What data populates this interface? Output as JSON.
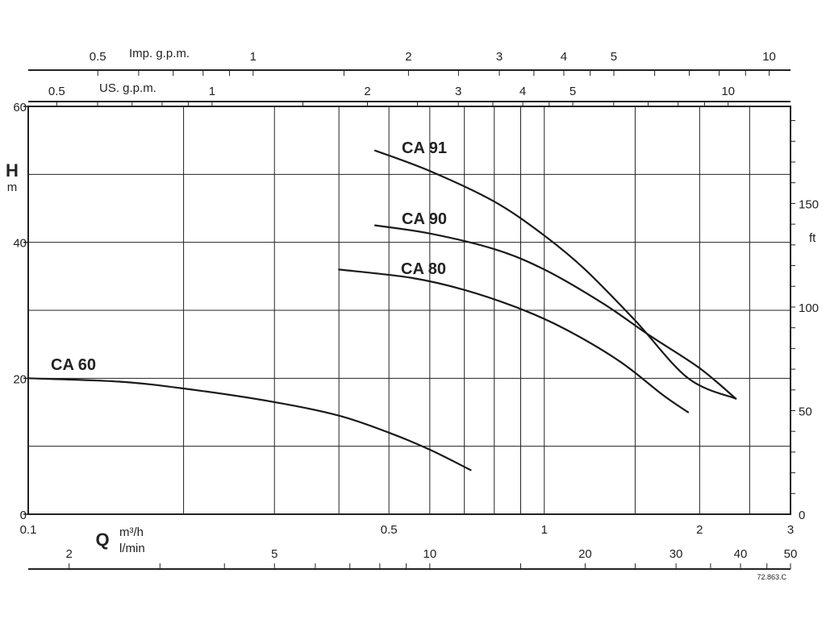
{
  "chart_data": {
    "type": "line",
    "title": "",
    "x_scale": "log",
    "y_scale": "linear",
    "xlim": [
      0.1,
      3
    ],
    "ylim": [
      0,
      60
    ],
    "grid": true,
    "x_axis": {
      "quantity": "Q",
      "unit_primary": "m³/h",
      "unit_secondary": "l/min",
      "ticks": [
        {
          "value": 0.1,
          "label": "0.1"
        },
        {
          "value": 0.5,
          "label": "0.5"
        },
        {
          "value": 1,
          "label": "1"
        },
        {
          "value": 2,
          "label": "2"
        },
        {
          "value": 3,
          "label": "3"
        }
      ],
      "lmin_ticks": [
        {
          "value": 2,
          "label": "2"
        },
        {
          "value": 5,
          "label": "5"
        },
        {
          "value": 10,
          "label": "10"
        },
        {
          "value": 20,
          "label": "20"
        },
        {
          "value": 30,
          "label": "30"
        },
        {
          "value": 40,
          "label": "40"
        },
        {
          "value": 50,
          "label": "50"
        }
      ]
    },
    "y_axis": {
      "quantity": "H",
      "unit": "m",
      "ticks": [
        {
          "value": 0,
          "label": "0"
        },
        {
          "value": 20,
          "label": "20"
        },
        {
          "value": 40,
          "label": "40"
        },
        {
          "value": 60,
          "label": "60"
        }
      ]
    },
    "y_axis_right": {
      "unit": "ft",
      "ticks": [
        {
          "value": 0,
          "label": "0"
        },
        {
          "value": 50,
          "label": "50"
        },
        {
          "value": 100,
          "label": "100"
        },
        {
          "value": 150,
          "label": "150"
        }
      ]
    },
    "top_axes": [
      {
        "label": "Imp. g.p.m.",
        "ticks": [
          {
            "value": 0.5,
            "label": "0.5"
          },
          {
            "value": 1,
            "label": "1"
          },
          {
            "value": 2,
            "label": "2"
          },
          {
            "value": 3,
            "label": "3"
          },
          {
            "value": 4,
            "label": "4"
          },
          {
            "value": 5,
            "label": "5"
          },
          {
            "value": 10,
            "label": "10"
          }
        ]
      },
      {
        "label": "US. g.p.m.",
        "ticks": [
          {
            "value": 0.5,
            "label": "0.5"
          },
          {
            "value": 1,
            "label": "1"
          },
          {
            "value": 2,
            "label": "2"
          },
          {
            "value": 3,
            "label": "3"
          },
          {
            "value": 4,
            "label": "4"
          },
          {
            "value": 5,
            "label": "5"
          },
          {
            "value": 10,
            "label": "10"
          }
        ]
      }
    ],
    "series": [
      {
        "name": "CA 91",
        "points": [
          [
            0.47,
            53.5
          ],
          [
            0.6,
            50.5
          ],
          [
            0.8,
            46
          ],
          [
            1.0,
            41
          ],
          [
            1.2,
            36
          ],
          [
            1.5,
            28.5
          ],
          [
            1.9,
            20
          ],
          [
            2.35,
            17
          ]
        ]
      },
      {
        "name": "CA 90",
        "points": [
          [
            0.47,
            42.5
          ],
          [
            0.6,
            41.3
          ],
          [
            0.8,
            39
          ],
          [
            1.0,
            36
          ],
          [
            1.3,
            31
          ],
          [
            1.6,
            26.3
          ],
          [
            2.0,
            21.5
          ],
          [
            2.35,
            17
          ]
        ]
      },
      {
        "name": "CA 80",
        "points": [
          [
            0.4,
            36
          ],
          [
            0.55,
            34.8
          ],
          [
            0.7,
            33
          ],
          [
            0.9,
            30.2
          ],
          [
            1.1,
            27.2
          ],
          [
            1.4,
            22.5
          ],
          [
            1.7,
            17.5
          ],
          [
            1.9,
            15
          ]
        ]
      },
      {
        "name": "CA 60",
        "points": [
          [
            0.1,
            20
          ],
          [
            0.15,
            19.5
          ],
          [
            0.2,
            18.5
          ],
          [
            0.3,
            16.5
          ],
          [
            0.4,
            14.5
          ],
          [
            0.5,
            12
          ],
          [
            0.6,
            9.5
          ],
          [
            0.72,
            6.5
          ]
        ]
      }
    ],
    "figure_code": "72.863.C"
  }
}
